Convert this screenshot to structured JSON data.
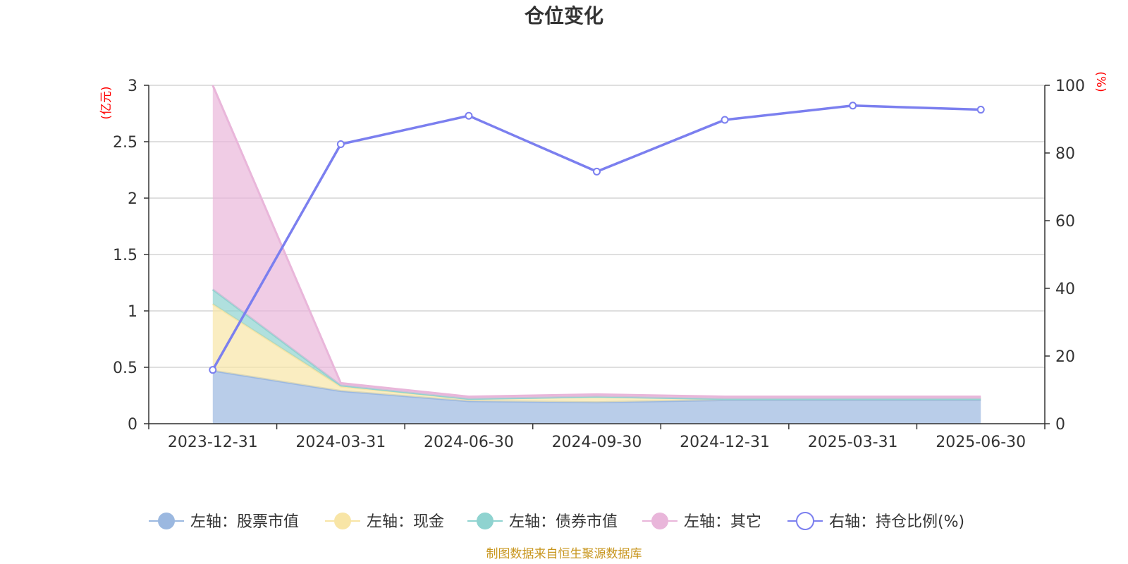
{
  "chart_data": {
    "type": "area",
    "title": "仓位变化",
    "categories": [
      "2023-12-31",
      "2024-03-31",
      "2024-06-30",
      "2024-09-30",
      "2024-12-31",
      "2025-03-31",
      "2025-06-30"
    ],
    "left_axis": {
      "unit": "(亿元)",
      "ylim": [
        0,
        3
      ],
      "ticks": [
        "0",
        "0.5",
        "1",
        "1.5",
        "2",
        "2.5",
        "3"
      ]
    },
    "right_axis": {
      "unit": "(%)",
      "ylim": [
        0,
        100
      ],
      "ticks": [
        "0",
        "20",
        "40",
        "60",
        "80",
        "100"
      ]
    },
    "grid": true,
    "legend_position": "bottom-center",
    "series": [
      {
        "name": "左轴：股票市值",
        "axis": "left",
        "kind": "stacked-area",
        "color": "#9bb8e0",
        "values": [
          0.47,
          0.29,
          0.2,
          0.19,
          0.21,
          0.21,
          0.21
        ]
      },
      {
        "name": "左轴：现金",
        "axis": "left",
        "kind": "stacked-area",
        "color": "#f8e5a6",
        "values": [
          0.59,
          0.04,
          0.02,
          0.05,
          0.01,
          0.01,
          0.01
        ]
      },
      {
        "name": "左轴：债券市值",
        "axis": "left",
        "kind": "stacked-area",
        "color": "#8fd3d0",
        "values": [
          0.13,
          0.01,
          0.0,
          0.0,
          0.0,
          0.0,
          0.0
        ]
      },
      {
        "name": "左轴：其它",
        "axis": "left",
        "kind": "stacked-area",
        "color": "#e9b6da",
        "values": [
          1.81,
          0.02,
          0.02,
          0.02,
          0.02,
          0.02,
          0.02
        ]
      },
      {
        "name": "右轴：持仓比例(%)",
        "axis": "right",
        "kind": "line",
        "color": "#7b7fef",
        "values": [
          15.9,
          82.6,
          91.0,
          74.5,
          89.8,
          94.0,
          92.8
        ]
      }
    ]
  },
  "source_text": "制图数据来自恒生聚源数据库"
}
